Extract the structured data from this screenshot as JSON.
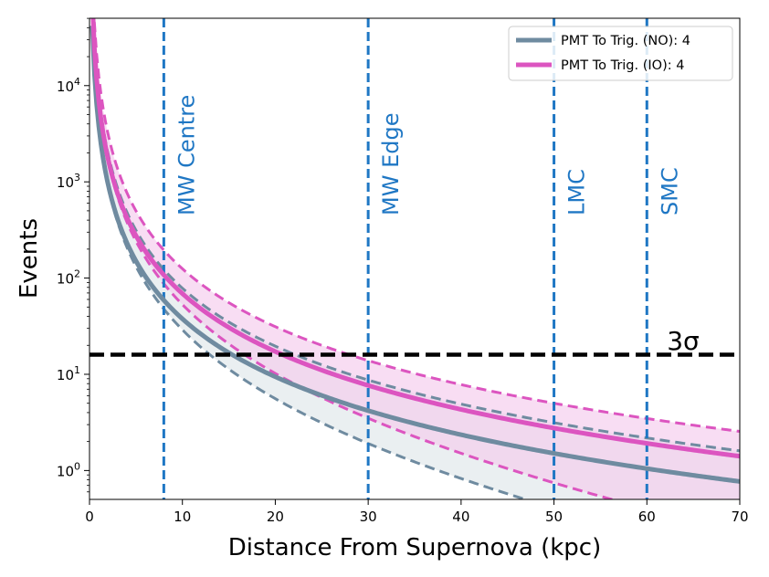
{
  "chart_data": {
    "type": "line",
    "title": "",
    "xlabel": "Distance From Supernova (kpc)",
    "ylabel": "Events",
    "xlim": [
      0,
      70
    ],
    "ylim_log10": [
      -0.3,
      4.7
    ],
    "yscale": "log",
    "x_ticks": [
      0,
      10,
      20,
      30,
      40,
      50,
      60,
      70
    ],
    "y_ticks": [
      {
        "value": 1,
        "exp": "0"
      },
      {
        "value": 10,
        "exp": "1"
      },
      {
        "value": 100,
        "exp": "2"
      },
      {
        "value": 1000,
        "exp": "3"
      },
      {
        "value": 10000,
        "exp": "4"
      }
    ],
    "series": [
      {
        "name": "PMT To Trig. (NO): 4",
        "color": "#6f8ba0",
        "A": 3770,
        "upper_A": 7850,
        "lower_A": 3770,
        "lower_decay": 0.0262,
        "band_fill": "#dfe6ea"
      },
      {
        "name": "PMT To Trig. (IO): 4",
        "color": "#dc55c0",
        "A": 6900,
        "upper_A": 12500,
        "lower_A": 6900,
        "lower_decay": 0.0262,
        "band_fill": "#f5cbec"
      }
    ],
    "vlines": [
      {
        "x": 8,
        "label": "MW Centre"
      },
      {
        "x": 30,
        "label": "MW Edge"
      },
      {
        "x": 50,
        "label": "LMC"
      },
      {
        "x": 60,
        "label": "SMC"
      }
    ],
    "vline_color": "#1f77c4",
    "hline": {
      "y": 16,
      "label": "3σ",
      "color": "#000000"
    },
    "legend_position": "top-right"
  }
}
